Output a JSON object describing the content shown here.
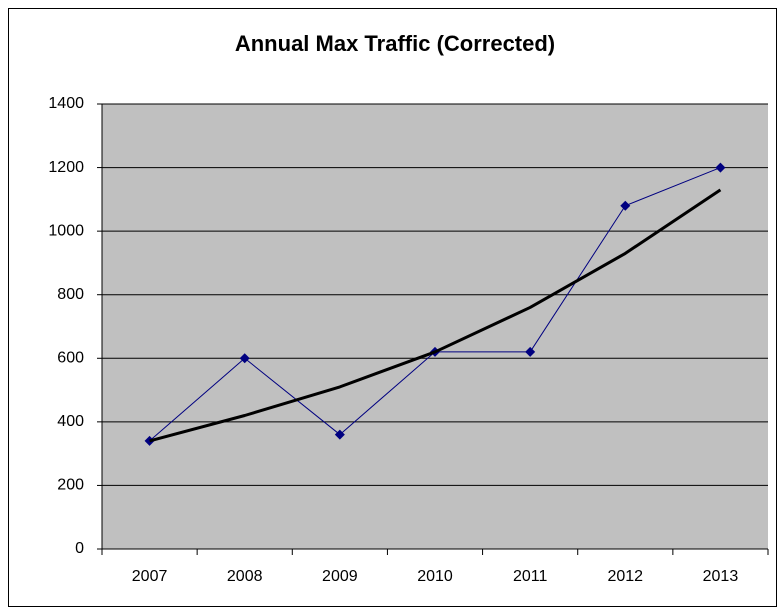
{
  "chart_data": {
    "type": "line",
    "title": "Annual Max Traffic (Corrected)",
    "categories": [
      "2007",
      "2008",
      "2009",
      "2010",
      "2011",
      "2012",
      "2013"
    ],
    "series": [
      {
        "color": "#000080",
        "marker": "diamond",
        "values": [
          340,
          600,
          360,
          620,
          620,
          1080,
          1200
        ]
      },
      {
        "color": "#000000",
        "marker": "none",
        "values": [
          340,
          420,
          510,
          620,
          760,
          930,
          1130
        ]
      }
    ],
    "ylim": [
      0,
      1400
    ],
    "yticks": [
      0,
      200,
      400,
      600,
      800,
      1000,
      1200,
      1400
    ],
    "grid": true
  }
}
